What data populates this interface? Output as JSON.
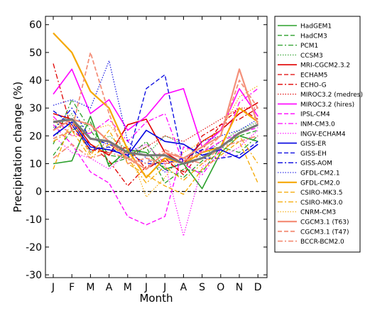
{
  "chart_data": {
    "type": "line",
    "xlabel": "Month",
    "ylabel": "Precipitation change (%)",
    "categories": [
      "J",
      "F",
      "M",
      "A",
      "M",
      "J",
      "J",
      "A",
      "S",
      "O",
      "N",
      "D"
    ],
    "ylim": [
      -31,
      63
    ],
    "yticks": [
      -30,
      -20,
      -10,
      0,
      10,
      20,
      30,
      40,
      50,
      60
    ],
    "grid": false,
    "legend_placement": "right, outside plot",
    "zero_line": {
      "value": 0,
      "style": "dashed",
      "color": "#000000"
    },
    "series": [
      {
        "name": "HadGEM1",
        "color": "#2ca02c",
        "style": "solid",
        "width": 1.6,
        "values": [
          10,
          11,
          27,
          9,
          15,
          14,
          8,
          10,
          1,
          14,
          20,
          18
        ]
      },
      {
        "name": "HadCM3",
        "color": "#2ca02c",
        "style": "dashed",
        "width": 1.3,
        "values": [
          13,
          22,
          25,
          10,
          12,
          16,
          3,
          8,
          7,
          16,
          20,
          22
        ]
      },
      {
        "name": "PCM1",
        "color": "#2ca02c",
        "style": "dashdot",
        "width": 1.3,
        "values": [
          17,
          33,
          22,
          13,
          12,
          18,
          8,
          5,
          11,
          16,
          14,
          20
        ]
      },
      {
        "name": "CCSM3",
        "color": "#2ca02c",
        "style": "dotted",
        "width": 1.1,
        "values": [
          23,
          28,
          14,
          20,
          15,
          13,
          20,
          17,
          12,
          18,
          22,
          25
        ]
      },
      {
        "name": "MRI-CGCM2.3.2",
        "color": "#e00000",
        "style": "solid",
        "width": 1.6,
        "values": [
          28,
          26,
          17,
          13,
          24,
          26,
          14,
          10,
          18,
          22,
          28,
          32
        ]
      },
      {
        "name": "ECHAM5",
        "color": "#e00000",
        "style": "dashed",
        "width": 1.3,
        "values": [
          25,
          24,
          15,
          14,
          16,
          8,
          12,
          6,
          15,
          24,
          30,
          26
        ]
      },
      {
        "name": "ECHO-G",
        "color": "#e00000",
        "style": "dashdot",
        "width": 1.3,
        "values": [
          46,
          22,
          17,
          11,
          2,
          9,
          11,
          7,
          20,
          24,
          26,
          30
        ]
      },
      {
        "name": "MIROC3.2 (medres)",
        "color": "#e00000",
        "style": "dotted",
        "width": 1.1,
        "values": [
          28,
          26,
          14,
          18,
          13,
          16,
          20,
          18,
          22,
          26,
          30,
          30
        ]
      },
      {
        "name": "MIROC3.2 (hires)",
        "color": "#ff00ff",
        "style": "solid",
        "width": 1.6,
        "values": [
          35,
          44,
          28,
          33,
          22,
          27,
          35,
          37,
          16,
          22,
          37,
          27
        ]
      },
      {
        "name": "IPSL-CM4",
        "color": "#ff00ff",
        "style": "dashed",
        "width": 1.3,
        "values": [
          24,
          17,
          7,
          3,
          -9,
          -12,
          -9,
          16,
          14,
          18,
          21,
          23
        ]
      },
      {
        "name": "INM-CM3.0",
        "color": "#ff00ff",
        "style": "dashdot",
        "width": 1.3,
        "values": [
          27,
          20,
          21,
          26,
          18,
          25,
          28,
          10,
          6,
          15,
          32,
          37
        ]
      },
      {
        "name": "INGV-ECHAM4",
        "color": "#ff00ff",
        "style": "dotted",
        "width": 1.1,
        "values": [
          20,
          14,
          12,
          8,
          14,
          17,
          10,
          -16,
          9,
          12,
          16,
          22
        ]
      },
      {
        "name": "GISS-ER",
        "color": "#0000e0",
        "style": "solid",
        "width": 1.6,
        "values": [
          20,
          25,
          16,
          15,
          13,
          22,
          18,
          17,
          13,
          15,
          12,
          17
        ]
      },
      {
        "name": "GISS-EH",
        "color": "#0000e0",
        "style": "dashed",
        "width": 1.3,
        "values": [
          29,
          24,
          15,
          16,
          12,
          37,
          42,
          10,
          12,
          12,
          13,
          18
        ]
      },
      {
        "name": "GISS-AOM",
        "color": "#0000e0",
        "style": "dashdot",
        "width": 1.3,
        "values": [
          22,
          30,
          19,
          17,
          14,
          10,
          10,
          12,
          15,
          16,
          18,
          20
        ]
      },
      {
        "name": "GFDL-CM2.1",
        "color": "#0000e0",
        "style": "dotted",
        "width": 1.1,
        "values": [
          31,
          33,
          30,
          47,
          18,
          12,
          7,
          11,
          18,
          20,
          22,
          26
        ]
      },
      {
        "name": "GFDL-CM2.0",
        "color": "#f5a800",
        "style": "solid",
        "width": 2.2,
        "values": [
          57,
          50,
          36,
          30,
          15,
          5,
          12,
          10,
          14,
          16,
          30,
          25
        ]
      },
      {
        "name": "CSIRO-MK3.5",
        "color": "#f5a800",
        "style": "dashed",
        "width": 1.3,
        "values": [
          8,
          26,
          13,
          22,
          10,
          6,
          2,
          -1,
          8,
          13,
          18,
          3
        ]
      },
      {
        "name": "CSIRO-MK3.0",
        "color": "#f5a800",
        "style": "dashdot",
        "width": 1.3,
        "values": [
          18,
          22,
          12,
          17,
          12,
          3,
          9,
          4,
          10,
          14,
          20,
          10
        ]
      },
      {
        "name": "CNRM-CM3",
        "color": "#f5a800",
        "style": "dotted",
        "width": 1.1,
        "values": [
          26,
          20,
          22,
          24,
          16,
          -2,
          5,
          14,
          18,
          22,
          34,
          38
        ]
      },
      {
        "name": "CGCM3.1 (T63)",
        "color": "#f4907a",
        "style": "solid",
        "width": 2.2,
        "values": [
          22,
          26,
          24,
          18,
          12,
          8,
          14,
          12,
          16,
          20,
          44,
          24
        ]
      },
      {
        "name": "CGCM3.1 (T47)",
        "color": "#f4907a",
        "style": "dashed",
        "width": 1.8,
        "values": [
          19,
          22,
          50,
          28,
          10,
          12,
          10,
          11,
          14,
          20,
          40,
          30
        ]
      },
      {
        "name": "BCCR-BCM2.0",
        "color": "#f4907a",
        "style": "dashdot",
        "width": 1.8,
        "values": [
          12,
          17,
          12,
          14,
          12,
          10,
          15,
          12,
          10,
          16,
          18,
          20
        ]
      }
    ],
    "ensemble_mean": {
      "color": "#777777",
      "width": 3.2,
      "values": [
        25,
        26,
        19,
        18,
        14,
        13,
        13,
        10,
        12,
        16,
        21,
        24
      ]
    }
  }
}
